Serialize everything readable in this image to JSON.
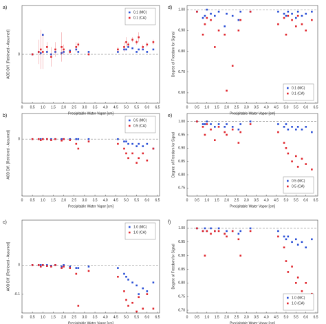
{
  "chart_data": [
    {
      "type": "scatter",
      "title": "a)",
      "xlabel": "Precipitable Water Vapor [cm]",
      "ylabel": "AOD Diff. [Retrieved - Assumed]",
      "x": [
        0.5,
        0.8,
        0.9,
        1.0,
        1.2,
        1.4,
        1.6,
        1.9,
        2.0,
        2.3,
        2.6,
        2.7,
        3.2,
        4.6,
        4.9,
        5.0,
        5.1,
        5.3,
        5.5,
        5.6,
        5.8,
        6.0,
        6.3
      ],
      "series": [
        {
          "name": "0.1 (MC)",
          "color": "#2a4fd6",
          "values": [
            0,
            0.01,
            0.005,
            0.08,
            0.01,
            0,
            0.01,
            0.005,
            0.01,
            0.015,
            0.02,
            0.01,
            0.01,
            0.01,
            0.02,
            0.02,
            0.03,
            0.025,
            0.01,
            0.02,
            0.02,
            0.01,
            0.02
          ]
        },
        {
          "name": "0.1 (CA)",
          "color": "#e0262d",
          "values": [
            0,
            0.01,
            0.02,
            0.01,
            0.03,
            -0.01,
            0.02,
            0.03,
            0.02,
            0.01,
            0.03,
            0.04,
            0,
            0.02,
            0.03,
            0.05,
            0.04,
            0.06,
            0.05,
            0.07,
            0.03,
            0.04,
            0.05
          ],
          "errors": [
            0.005,
            0.05,
            0.08,
            0.07,
            0.02,
            0.04,
            0.03,
            0.06,
            0.02,
            0.01,
            0.02,
            0.01,
            0.005,
            0.01,
            0.02,
            0.02,
            0.01,
            0.01,
            0.01,
            0.02,
            0.01,
            0.01,
            0.01
          ]
        }
      ],
      "xlim": [
        0,
        6.6
      ],
      "xticks": [
        0,
        0.5,
        {
          "value": 1,
          "label": "1.0"
        },
        1.5,
        {
          "value": 2,
          "label": "2.0"
        },
        2.5,
        {
          "value": 3,
          "label": "3.0"
        },
        3.5,
        {
          "value": 4,
          "label": "4.0"
        },
        4.5,
        {
          "value": 5,
          "label": "5.0"
        },
        5.5,
        {
          "value": 6,
          "label": "6.0"
        },
        6.5
      ],
      "ylim": [
        -0.2,
        0.2
      ],
      "yticks": [
        0
      ],
      "refline": 0,
      "legend": "upper right"
    },
    {
      "type": "scatter",
      "title": "b)",
      "xlabel": "Precipitable Water Vapor [cm]",
      "ylabel": "AOD Diff. [Retrieved - Assumed]",
      "x": [
        0.5,
        0.8,
        0.9,
        1.0,
        1.2,
        1.4,
        1.6,
        1.9,
        2.0,
        2.3,
        2.6,
        2.7,
        3.2,
        4.6,
        4.9,
        5.0,
        5.1,
        5.3,
        5.5,
        5.6,
        5.8,
        6.0,
        6.3
      ],
      "series": [
        {
          "name": "0.5 (MC)",
          "color": "#2a4fd6",
          "values": [
            0,
            0,
            0,
            0,
            0,
            0,
            0,
            0,
            0,
            0,
            0,
            0,
            0,
            0,
            -0.005,
            -0.005,
            -0.01,
            -0.01,
            -0.015,
            -0.01,
            -0.015,
            -0.01,
            -0.02
          ]
        },
        {
          "name": "0.5 (CA)",
          "color": "#e0262d",
          "values": [
            0,
            0,
            -0.002,
            0,
            0,
            -0.002,
            0,
            -0.003,
            0,
            -0.002,
            -0.01,
            -0.02,
            -0.005,
            -0.01,
            -0.02,
            -0.03,
            -0.04,
            -0.03,
            -0.05,
            -0.04,
            -0.03,
            -0.045,
            -0.02
          ]
        }
      ],
      "xlim": [
        0,
        6.6
      ],
      "xticks": [
        0,
        0.5,
        {
          "value": 1,
          "label": "1.0"
        },
        1.5,
        {
          "value": 2,
          "label": "2.0"
        },
        2.5,
        {
          "value": 3,
          "label": "3.0"
        },
        3.5,
        {
          "value": 4,
          "label": "4.0"
        },
        4.5,
        {
          "value": 5,
          "label": "5.0"
        },
        5.5,
        {
          "value": 6,
          "label": "6.0"
        },
        6.5
      ],
      "ylim": [
        -0.12,
        0.054
      ],
      "yticks": [
        0
      ],
      "refline": 0,
      "legend": "upper right"
    },
    {
      "type": "scatter",
      "title": "c)",
      "xlabel": "Precipitable Water Vapor [cm]",
      "ylabel": "AOD Diff. [Retrieved - Assumed]",
      "x": [
        0.5,
        0.8,
        0.9,
        1.0,
        1.2,
        1.4,
        1.6,
        1.9,
        2.0,
        2.3,
        2.6,
        2.7,
        3.2,
        4.6,
        4.9,
        5.0,
        5.1,
        5.3,
        5.5,
        5.6,
        5.8,
        6.0,
        6.3
      ],
      "series": [
        {
          "name": "1.0 (MC)",
          "color": "#2a4fd6",
          "values": [
            0,
            0,
            0,
            0,
            0,
            -0.002,
            0,
            -0.005,
            0,
            -0.005,
            -0.01,
            -0.01,
            -0.005,
            -0.01,
            -0.03,
            -0.04,
            -0.05,
            -0.06,
            -0.07,
            -0.1,
            -0.08,
            -0.09,
            -0.06
          ]
        },
        {
          "name": "1.0 (CA)",
          "color": "#e0262d",
          "values": [
            0,
            0,
            -0.005,
            0,
            -0.003,
            -0.005,
            0,
            -0.01,
            -0.005,
            -0.01,
            -0.03,
            -0.14,
            -0.02,
            -0.04,
            -0.09,
            -0.12,
            -0.14,
            -0.13,
            -0.16,
            -0.11,
            -0.15,
            -0.1,
            -0.15
          ]
        }
      ],
      "xlim": [
        0,
        6.6
      ],
      "xticks": [
        0,
        0.5,
        {
          "value": 1,
          "label": "1.0"
        },
        1.5,
        {
          "value": 2,
          "label": "2.0"
        },
        2.5,
        {
          "value": 3,
          "label": "3.0"
        },
        3.5,
        {
          "value": 4,
          "label": "4.0"
        },
        4.5,
        {
          "value": 5,
          "label": "5.0"
        },
        5.5,
        {
          "value": 6,
          "label": "6.0"
        },
        6.5
      ],
      "ylim": [
        -0.165,
        0.155
      ],
      "yticks": [
        -0.1,
        0
      ],
      "refline": 0,
      "legend": "upper right"
    },
    {
      "type": "scatter",
      "title": "d)",
      "xlabel": "Precipitable Water Vapor [cm]",
      "ylabel": "Degree of Freedom for Signal",
      "x": [
        0.5,
        0.8,
        0.9,
        1.0,
        1.2,
        1.4,
        1.6,
        1.9,
        2.0,
        2.3,
        2.6,
        2.7,
        3.2,
        4.6,
        4.9,
        5.0,
        5.1,
        5.3,
        5.5,
        5.6,
        5.8,
        6.0,
        6.3
      ],
      "series": [
        {
          "name": "0.1 (MC)",
          "color": "#2a4fd6",
          "values": [
            0.99,
            0.96,
            0.97,
            1.0,
            0.98,
            0.97,
            0.99,
            0.92,
            0.98,
            0.97,
            0.95,
            0.99,
            0.99,
            0.99,
            0.98,
            0.97,
            0.99,
            0.98,
            0.96,
            0.99,
            0.97,
            0.98,
            0.99
          ]
        },
        {
          "name": "0.1 (CA)",
          "color": "#e0262d",
          "values": [
            0.99,
            0.88,
            0.93,
            0.96,
            0.95,
            0.82,
            0.9,
            0.88,
            0.61,
            0.73,
            0.9,
            0.95,
            0.99,
            0.93,
            0.96,
            0.88,
            0.97,
            0.95,
            0.92,
            0.97,
            0.93,
            0.9,
            0.95
          ]
        }
      ],
      "xlim": [
        0,
        6.6
      ],
      "xticks": [
        0,
        0.5,
        {
          "value": 1,
          "label": "1.0"
        },
        1.5,
        {
          "value": 2,
          "label": "2.0"
        },
        2.5,
        {
          "value": 3,
          "label": "3.0"
        },
        3.5,
        {
          "value": 4,
          "label": "4.0"
        },
        4.5,
        {
          "value": 5,
          "label": "5.0"
        },
        5.5,
        {
          "value": 6,
          "label": "6.0"
        },
        6.5
      ],
      "ylim": [
        0.55,
        1.02
      ],
      "yticks": [
        {
          "value": 0.6,
          "label": "0.60"
        },
        {
          "value": 0.7,
          "label": "0.70"
        },
        {
          "value": 0.8,
          "label": "0.80"
        },
        {
          "value": 0.9,
          "label": "0.90"
        },
        {
          "value": 1,
          "label": "1.00"
        }
      ],
      "refline": 1,
      "legend": "lower right"
    },
    {
      "type": "scatter",
      "title": "e)",
      "xlabel": "Precipitable Water Vapor [cm]",
      "ylabel": "Degree of Freedom for Signal",
      "x": [
        0.5,
        0.8,
        0.9,
        1.0,
        1.2,
        1.4,
        1.6,
        1.9,
        2.0,
        2.3,
        2.6,
        2.7,
        3.2,
        4.6,
        4.9,
        5.0,
        5.1,
        5.3,
        5.5,
        5.6,
        5.8,
        6.0,
        6.3
      ],
      "series": [
        {
          "name": "0.5 (MC)",
          "color": "#2a4fd6",
          "values": [
            1.0,
            0.99,
            0.99,
            1.0,
            0.99,
            0.98,
            0.99,
            0.98,
            0.99,
            0.98,
            0.97,
            0.99,
            1.0,
            0.99,
            0.98,
            0.99,
            0.97,
            0.98,
            0.97,
            0.98,
            0.97,
            0.98,
            0.96
          ]
        },
        {
          "name": "0.5 (CA)",
          "color": "#e0262d",
          "values": [
            1.0,
            0.98,
            0.95,
            0.99,
            0.97,
            0.93,
            0.98,
            0.96,
            0.95,
            0.97,
            0.92,
            0.96,
            0.99,
            0.96,
            0.92,
            0.9,
            0.88,
            0.85,
            0.87,
            0.83,
            0.86,
            0.84,
            0.82
          ]
        }
      ],
      "xlim": [
        0,
        6.6
      ],
      "xticks": [
        0,
        0.5,
        {
          "value": 1,
          "label": "1.0"
        },
        1.5,
        {
          "value": 2,
          "label": "2.0"
        },
        2.5,
        {
          "value": 3,
          "label": "3.0"
        },
        3.5,
        {
          "value": 4,
          "label": "4.0"
        },
        4.5,
        {
          "value": 5,
          "label": "5.0"
        },
        5.5,
        {
          "value": 6,
          "label": "6.0"
        },
        6.5
      ],
      "ylim": [
        0.72,
        1.03
      ],
      "yticks": [
        0.75,
        {
          "value": 0.8,
          "label": "0.80"
        },
        0.85,
        {
          "value": 0.9,
          "label": "0.90"
        },
        0.95,
        {
          "value": 1,
          "label": "1.00"
        }
      ],
      "refline": 1,
      "legend": "lower right"
    },
    {
      "type": "scatter",
      "title": "f)",
      "xlabel": "Precipitable Water Vapor [cm]",
      "ylabel": "Degree of Freedom for Signal",
      "x": [
        0.5,
        0.8,
        0.9,
        1.0,
        1.2,
        1.4,
        1.6,
        1.9,
        2.0,
        2.3,
        2.6,
        2.7,
        3.2,
        4.6,
        4.9,
        5.0,
        5.1,
        5.3,
        5.5,
        5.6,
        5.8,
        6.0,
        6.3
      ],
      "series": [
        {
          "name": "1.0 (MC)",
          "color": "#2a4fd6",
          "values": [
            1.0,
            0.99,
            1.0,
            0.99,
            1.0,
            0.99,
            1.0,
            0.98,
            0.99,
            0.99,
            0.98,
            0.99,
            1.0,
            0.99,
            0.97,
            0.96,
            0.97,
            0.95,
            0.96,
            0.94,
            0.95,
            0.93,
            0.96
          ]
        },
        {
          "name": "1.0 (CA)",
          "color": "#e0262d",
          "values": [
            1.0,
            0.99,
            0.9,
            0.99,
            0.98,
            0.99,
            0.99,
            0.98,
            0.97,
            0.99,
            0.96,
            0.9,
            0.99,
            0.97,
            0.93,
            0.88,
            0.84,
            0.86,
            0.8,
            0.82,
            0.77,
            0.8,
            0.76
          ]
        }
      ],
      "xlim": [
        0,
        6.6
      ],
      "xticks": [
        0,
        0.5,
        {
          "value": 1,
          "label": "1.0"
        },
        1.5,
        {
          "value": 2,
          "label": "2.0"
        },
        2.5,
        {
          "value": 3,
          "label": "3.0"
        },
        3.5,
        {
          "value": 4,
          "label": "4.0"
        },
        4.5,
        {
          "value": 5,
          "label": "5.0"
        },
        5.5,
        {
          "value": 6,
          "label": "6.0"
        },
        6.5
      ],
      "ylim": [
        0.69,
        1.03
      ],
      "yticks": [
        {
          "value": 0.7,
          "label": "0.70"
        },
        0.75,
        {
          "value": 0.8,
          "label": "0.80"
        },
        0.85,
        {
          "value": 0.9,
          "label": "0.90"
        },
        0.95,
        {
          "value": 1,
          "label": "1.00"
        }
      ],
      "refline": 1,
      "legend": "lower right"
    }
  ]
}
